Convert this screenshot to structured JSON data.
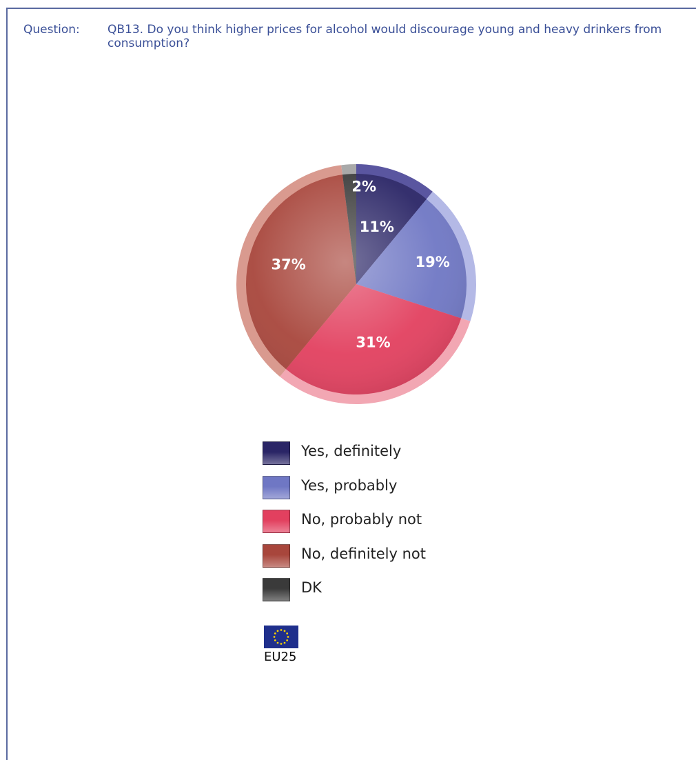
{
  "question": {
    "label": "Question:",
    "text": "QB13. Do you think higher prices for alcohol would discourage young and heavy drinkers from consumption?"
  },
  "chart_data": {
    "type": "pie",
    "title": "",
    "slices": [
      {
        "name": "Yes, definitely",
        "value": 11,
        "label": "11%",
        "color": "#2a2566",
        "rim": "#5a56a0",
        "text_color": "#ffffff"
      },
      {
        "name": "Yes, probably",
        "value": 19,
        "label": "19%",
        "color": "#6f77c4",
        "rim": "#b4b9e6",
        "text_color": "#ffffff"
      },
      {
        "name": "No, probably not",
        "value": 31,
        "label": "31%",
        "color": "#e2405f",
        "rim": "#f2a7b3",
        "text_color": "#ffffff"
      },
      {
        "name": "No, definitely not",
        "value": 37,
        "label": "37%",
        "color": "#a8463c",
        "rim": "#d99a8f",
        "text_color": "#ffffff"
      },
      {
        "name": "DK",
        "value": 2,
        "label": "2%",
        "color": "#3a3a3a",
        "rim": "#a9a9a9",
        "text_color": "#ffffff"
      }
    ],
    "legend_position": "bottom"
  },
  "legend": {
    "items": [
      {
        "label": "Yes, definitely",
        "color": "#2a2566"
      },
      {
        "label": "Yes, probably",
        "color": "#6f77c4"
      },
      {
        "label": "No, probably not",
        "color": "#e2405f"
      },
      {
        "label": "No, definitely not",
        "color": "#a8463c"
      },
      {
        "label": "DK",
        "color": "#3a3a3a"
      }
    ]
  },
  "footer": {
    "flag_icon": "eu-flag-icon",
    "region": "EU25"
  }
}
